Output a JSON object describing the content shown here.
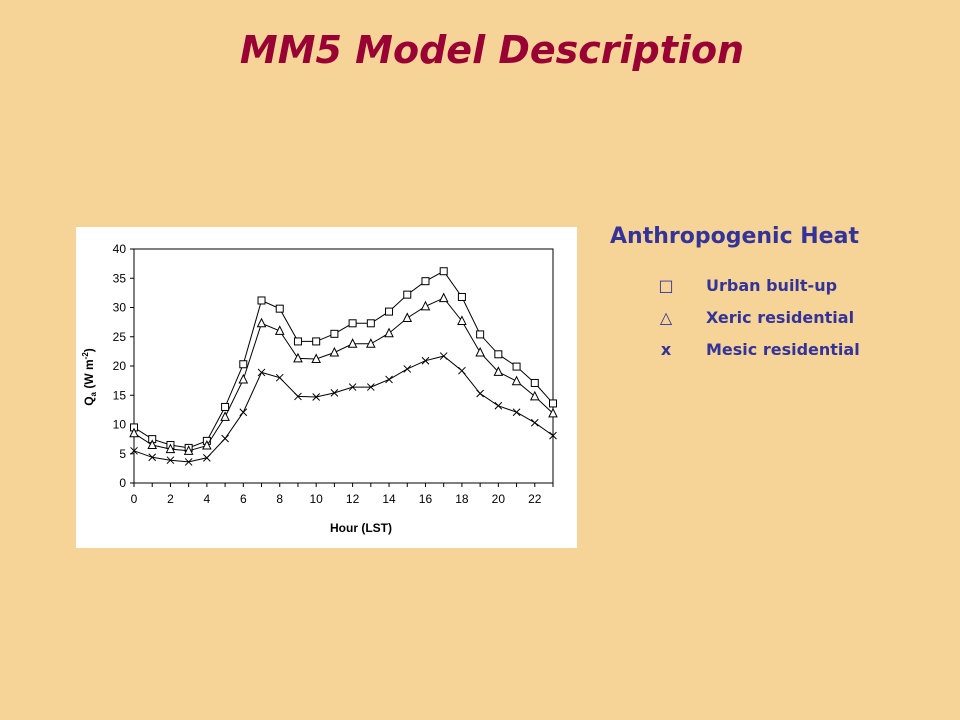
{
  "slide": {
    "title": "MM5 Model Description"
  },
  "side": {
    "title": "Anthropogenic Heat"
  },
  "legend": [
    {
      "symbol": "□",
      "marker": "square",
      "label": "Urban built-up"
    },
    {
      "symbol": "△",
      "marker": "triangle",
      "label": "Xeric residential"
    },
    {
      "symbol": "x",
      "marker": "x",
      "label": "Mesic residential"
    }
  ],
  "chart_data": {
    "type": "line",
    "xlabel": "Hour (LST)",
    "ylabel_main": "Q",
    "ylabel_sub": "a",
    "ylabel_units": " (W m",
    "ylabel_sup": "-2",
    "ylabel_close": ")",
    "xlim": [
      0,
      23
    ],
    "ylim": [
      0,
      40
    ],
    "xticks": [
      0,
      2,
      4,
      6,
      8,
      10,
      12,
      14,
      16,
      18,
      20,
      22
    ],
    "yticks": [
      0,
      5,
      10,
      15,
      20,
      25,
      30,
      35,
      40
    ],
    "grid": false,
    "x": [
      0,
      1,
      2,
      3,
      4,
      5,
      6,
      7,
      8,
      9,
      10,
      11,
      12,
      13,
      14,
      15,
      16,
      17,
      18,
      19,
      20,
      21,
      22,
      23
    ],
    "series": [
      {
        "name": "Urban built-up",
        "marker": "square",
        "values": [
          9.5,
          7.5,
          6.5,
          6.0,
          7.2,
          13.0,
          20.3,
          31.2,
          29.8,
          24.2,
          24.2,
          25.5,
          27.3,
          27.3,
          29.3,
          32.2,
          34.5,
          36.2,
          31.8,
          25.4,
          22.0,
          19.9,
          17.1,
          13.6
        ]
      },
      {
        "name": "Xeric residential",
        "marker": "triangle",
        "values": [
          8.5,
          6.5,
          5.8,
          5.5,
          6.4,
          11.3,
          17.7,
          27.3,
          26.0,
          21.3,
          21.2,
          22.3,
          23.8,
          23.8,
          25.6,
          28.2,
          30.2,
          31.6,
          27.7,
          22.3,
          19.0,
          17.4,
          14.8,
          11.9
        ]
      },
      {
        "name": "Mesic residential",
        "marker": "x",
        "values": [
          5.5,
          4.4,
          3.9,
          3.6,
          4.3,
          7.6,
          12.1,
          18.9,
          18.0,
          14.8,
          14.7,
          15.4,
          16.4,
          16.4,
          17.7,
          19.5,
          20.9,
          21.7,
          19.2,
          15.3,
          13.2,
          12.1,
          10.3,
          8.1
        ]
      }
    ]
  }
}
